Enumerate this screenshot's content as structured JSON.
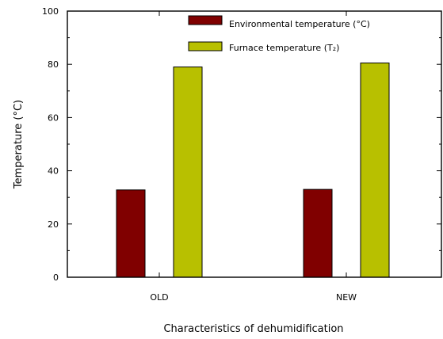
{
  "chart_data": {
    "type": "bar",
    "categories": [
      "OLD",
      "NEW"
    ],
    "series": [
      {
        "name": "Environmental temperature",
        "legend_label": "Environmental temperature (°C)",
        "color": "#800000",
        "values": [
          32.8,
          33.0
        ]
      },
      {
        "name": "Furnace temperature",
        "legend_label": "Furnace temperature (T₂)",
        "color": "#b8c000",
        "values": [
          79.0,
          80.5
        ]
      }
    ],
    "title": "",
    "xlabel": "Characteristics of dehumidification",
    "ylabel": "Temperature (°C)",
    "ylim": [
      0,
      100
    ],
    "yticks": [
      0,
      20,
      40,
      60,
      80,
      100
    ],
    "grid": false,
    "legend_position": "top-right"
  }
}
